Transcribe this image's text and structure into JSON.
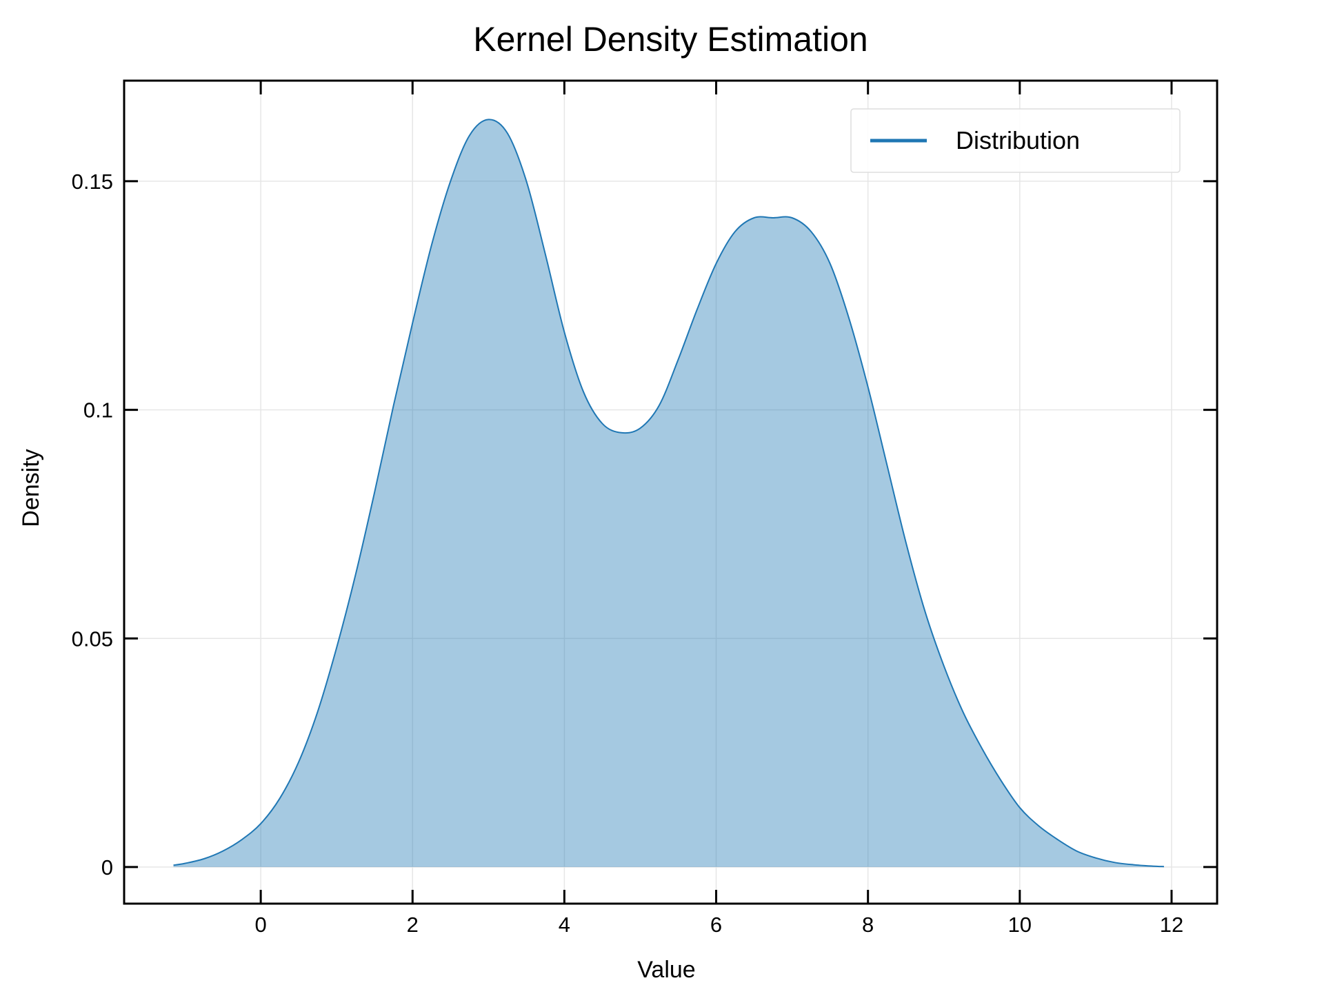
{
  "chart_data": {
    "type": "area",
    "title": "Kernel Density Estimation",
    "xlabel": "Value",
    "ylabel": "Density",
    "xlim": [
      -1.8,
      12.6
    ],
    "ylim": [
      -0.008,
      0.172
    ],
    "x_ticks": [
      0,
      2,
      4,
      6,
      8,
      10,
      12
    ],
    "x_tick_labels": [
      "0",
      "2",
      "4",
      "6",
      "8",
      "10",
      "12"
    ],
    "y_ticks": [
      0,
      0.05,
      0.1,
      0.15
    ],
    "y_tick_labels": [
      "0",
      "0.05",
      "0.1",
      "0.15"
    ],
    "grid": true,
    "legend_position": "top-right",
    "series": [
      {
        "name": "Distribution",
        "color": "#1f77b4",
        "fill_color": "#1f77b4",
        "fill_opacity": 0.4,
        "x": [
          -1.15,
          -1.0,
          -0.75,
          -0.5,
          -0.25,
          0.0,
          0.25,
          0.5,
          0.75,
          1.0,
          1.25,
          1.5,
          1.75,
          2.0,
          2.25,
          2.5,
          2.75,
          3.0,
          3.25,
          3.5,
          3.75,
          4.0,
          4.25,
          4.5,
          4.75,
          5.0,
          5.25,
          5.5,
          5.75,
          6.0,
          6.25,
          6.5,
          6.75,
          7.0,
          7.25,
          7.5,
          7.75,
          8.0,
          8.25,
          8.5,
          8.75,
          9.0,
          9.25,
          9.5,
          9.75,
          10.0,
          10.25,
          10.5,
          10.75,
          11.0,
          11.25,
          11.5,
          11.75,
          11.9
        ],
        "y": [
          0.0004,
          0.0008,
          0.0018,
          0.0035,
          0.006,
          0.0095,
          0.015,
          0.023,
          0.034,
          0.048,
          0.064,
          0.082,
          0.101,
          0.119,
          0.136,
          0.15,
          0.16,
          0.1635,
          0.1605,
          0.15,
          0.134,
          0.117,
          0.104,
          0.097,
          0.095,
          0.096,
          0.101,
          0.111,
          0.122,
          0.132,
          0.139,
          0.142,
          0.142,
          0.142,
          0.139,
          0.132,
          0.12,
          0.105,
          0.088,
          0.071,
          0.056,
          0.044,
          0.034,
          0.026,
          0.019,
          0.013,
          0.009,
          0.006,
          0.0035,
          0.002,
          0.001,
          0.0005,
          0.0002,
          0.0001
        ]
      }
    ]
  }
}
